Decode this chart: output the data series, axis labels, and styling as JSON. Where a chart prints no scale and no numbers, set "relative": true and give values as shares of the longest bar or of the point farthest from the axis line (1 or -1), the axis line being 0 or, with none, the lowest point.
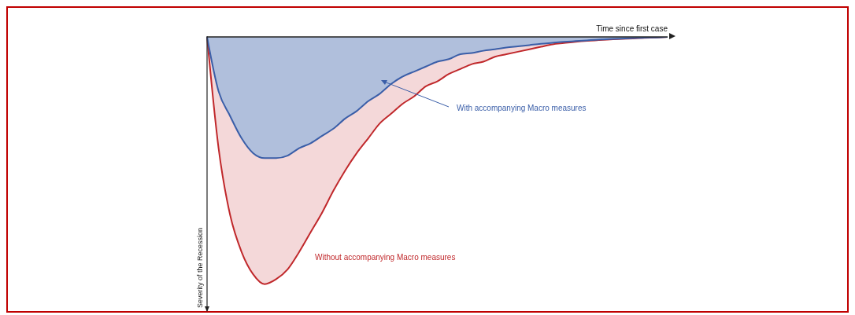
{
  "chart_data": {
    "type": "area",
    "relative": true,
    "xlabel": "Time since first case",
    "ylabel": "Severity of the Recession",
    "categories": [
      null,
      null,
      null,
      null,
      null,
      null,
      null,
      null,
      null,
      null,
      null,
      null,
      null,
      null,
      null,
      null,
      null,
      null,
      null,
      null,
      null,
      null,
      null,
      null,
      null,
      null,
      null,
      null,
      null,
      null,
      null,
      null,
      null,
      null,
      null,
      null,
      null,
      null,
      null,
      null,
      null
    ],
    "series": [
      {
        "name": "Without accompanying Macro measures",
        "color": "#c0282b",
        "values": [
          0,
          -0.45,
          -0.72,
          -0.87,
          -0.96,
          -1,
          -0.98,
          -0.94,
          -0.87,
          -0.79,
          -0.71,
          -0.62,
          -0.54,
          -0.47,
          -0.41,
          -0.35,
          -0.31,
          -0.27,
          -0.24,
          -0.2,
          -0.18,
          -0.15,
          -0.13,
          -0.11,
          -0.1,
          -0.08,
          -0.07,
          -0.06,
          -0.05,
          -0.04,
          -0.03,
          -0.025,
          -0.02,
          -0.016,
          -0.013,
          -0.01,
          -0.008,
          -0.006,
          -0.004,
          -0.002,
          0
        ]
      },
      {
        "name": "With accompanying Macro measures",
        "color": "#3a5ea8",
        "values": [
          0,
          -0.22,
          -0.32,
          -0.41,
          -0.47,
          -0.49,
          -0.49,
          -0.48,
          -0.45,
          -0.43,
          -0.4,
          -0.37,
          -0.33,
          -0.3,
          -0.26,
          -0.23,
          -0.19,
          -0.16,
          -0.14,
          -0.12,
          -0.1,
          -0.09,
          -0.07,
          -0.065,
          -0.056,
          -0.05,
          -0.043,
          -0.038,
          -0.033,
          -0.028,
          -0.024,
          -0.02,
          -0.017,
          -0.014,
          -0.011,
          -0.009,
          -0.007,
          -0.005,
          -0.003,
          -0.002,
          0
        ]
      }
    ]
  }
}
